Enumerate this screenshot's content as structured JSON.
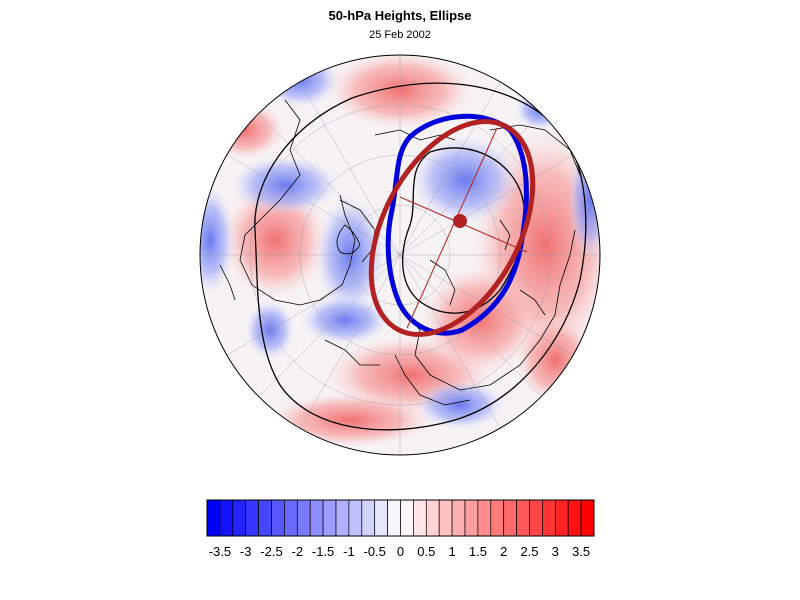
{
  "title": "50-hPa Heights, Ellipse",
  "date": "25 Feb 2002",
  "colors": {
    "ellipse_fit": "#b22222",
    "vortex_edge": "#0000dd",
    "negative_max": "#0000ff",
    "positive_max": "#ff0000",
    "coastline": "#000000",
    "height_contour": "#000000"
  },
  "projection": "north-polar-stereographic",
  "colorbar": {
    "orientation": "horizontal",
    "min": -3.75,
    "max": 3.75,
    "step": 0.25,
    "tick_labels": [
      "-3.5",
      "-3",
      "-2.5",
      "-2",
      "-1.5",
      "-1",
      "-0.5",
      "0",
      "0.5",
      "1",
      "1.5",
      "2",
      "2.5",
      "3",
      "3.5"
    ]
  }
}
